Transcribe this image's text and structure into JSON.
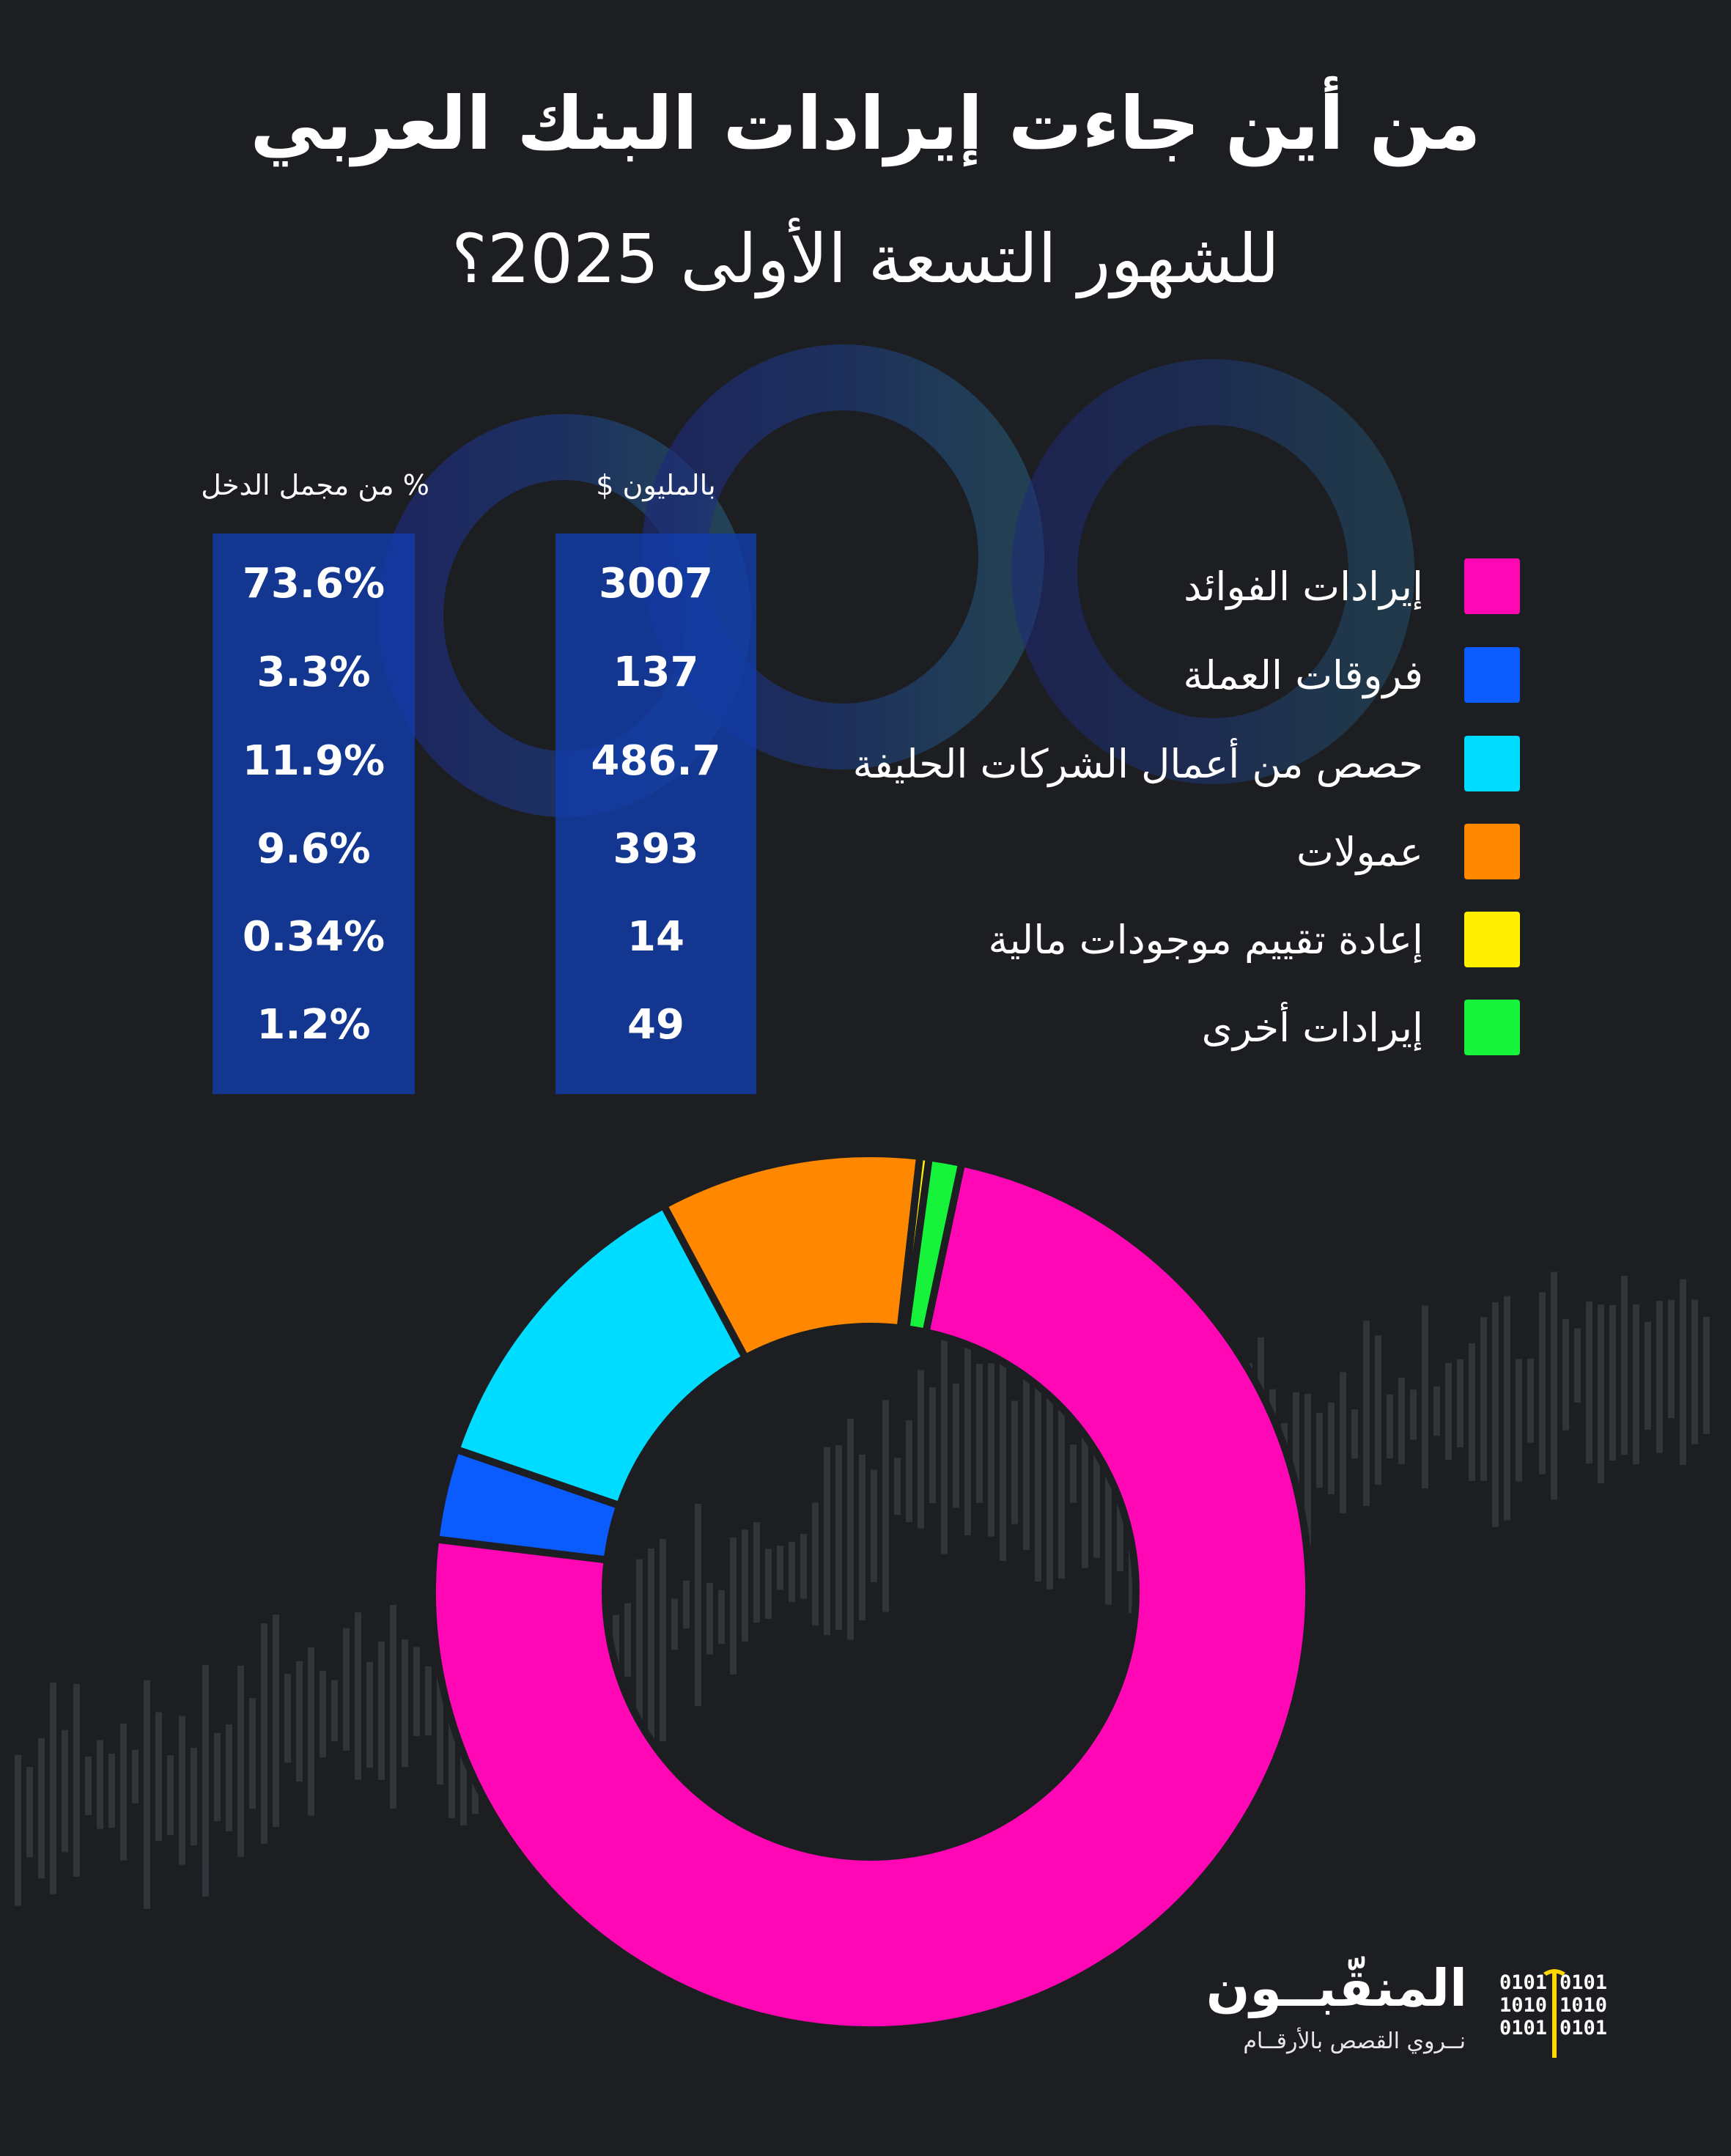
{
  "title": "من أين جاءت إيرادات البنك العربي",
  "subtitle": "للشهور التسعة الأولى 2025؟",
  "columns": {
    "millions_header": "بالمليون $",
    "percent_header": "% من مجمل الدخل"
  },
  "chart_data": {
    "type": "pie",
    "style": "donut",
    "title": "من أين جاءت إيرادات البنك العربي للشهور التسعة الأولى 2025؟",
    "unit_values": "بالمليون $",
    "unit_shares": "% من مجمل الدخل",
    "categories": [
      "إيرادات الفوائد",
      "فروقات العملة",
      "حصص من أعمال الشركات الحليفة",
      "عمولات",
      "إعادة تقييم موجودات مالية",
      "إيرادات أخرى"
    ],
    "values": [
      3007,
      137,
      486.7,
      393,
      14,
      49
    ],
    "value_labels": [
      "3007",
      "137",
      "486.7",
      "393",
      "14",
      "49"
    ],
    "shares": [
      "73.6%",
      "3.3%",
      "11.9%",
      "9.6%",
      "0.34%",
      "1.2%"
    ],
    "colors": [
      "#ff07b5",
      "#0a5cff",
      "#00dcff",
      "#ff8800",
      "#ffef00",
      "#17f23b"
    ],
    "start_angle_deg": 12,
    "direction": "clockwise",
    "legend_position": "top-right"
  },
  "logo": {
    "name": "المنقّبــون",
    "tagline": "نــروي القصص بالأرقــام",
    "bits": [
      "0101",
      "1010",
      "0101"
    ]
  }
}
